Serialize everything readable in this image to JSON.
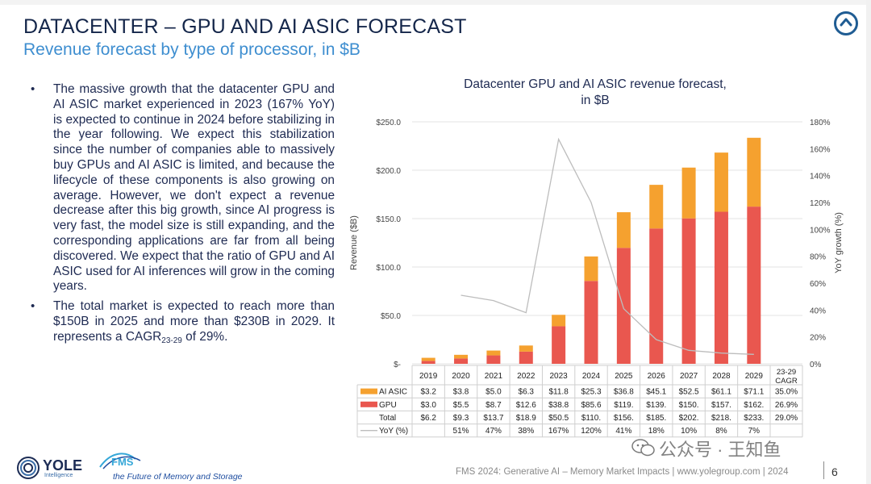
{
  "header": {
    "title": "DATACENTER – GPU AND AI ASIC FORECAST",
    "subtitle": "Revenue forecast by type of processor, in $B",
    "corner_icon": "chevron-up-circle-icon"
  },
  "bullets": [
    {
      "text": "The massive growth that the datacenter GPU and AI ASIC market experienced in 2023 (167% YoY) is expected to continue in 2024 before stabilizing in the year following. We expect this stabilization since the number of companies able to massively buy GPUs and AI ASIC is limited, and because the lifecycle of these components is also growing on average. However, we don't expect a revenue decrease after this big growth, since AI progress is very fast, the model size is still expanding, and the corresponding applications are far from all being discovered. We expect that the ratio of GPU and AI ASIC used for AI inferences will grow in the coming years."
    },
    {
      "text_before": "The total market is expected to reach more than $150B in 2025 and more than $230B in 2029. It represents a CAGR",
      "text_sub": "23-29",
      "text_after": " of 29%."
    }
  ],
  "chart_data": {
    "type": "bar",
    "stacked": true,
    "title": "Datacenter GPU and AI ASIC revenue forecast, in $B",
    "title_lines": [
      "Datacenter GPU and AI ASIC revenue forecast,",
      "in $B"
    ],
    "categories": [
      "2019",
      "2020",
      "2021",
      "2022",
      "2023",
      "2024",
      "2025",
      "2026",
      "2027",
      "2028",
      "2029"
    ],
    "series": [
      {
        "name": "GPU",
        "type": "bar",
        "color": "#e9574f",
        "values": [
          3.0,
          5.5,
          8.7,
          12.6,
          38.8,
          85.6,
          119.8,
          139.8,
          150.2,
          157.1,
          162.4
        ]
      },
      {
        "name": "AI ASIC",
        "type": "bar",
        "color": "#f5a12f",
        "values": [
          3.2,
          3.8,
          5.0,
          6.3,
          11.8,
          25.3,
          36.8,
          45.1,
          52.5,
          61.1,
          71.1
        ]
      },
      {
        "name": "YoY (%)",
        "type": "line",
        "axis": "right",
        "color": "#bdbdbd",
        "values": [
          null,
          51,
          47,
          38,
          167,
          120,
          41,
          18,
          10,
          8,
          7
        ]
      }
    ],
    "ylabel": "Revenue ($B)",
    "y2label": "YoY growth (%)",
    "ylim": [
      0,
      250
    ],
    "y2lim": [
      0,
      180
    ],
    "yticks": [
      "$-",
      "$50.0",
      "$100.0",
      "$150.0",
      "$200.0",
      "$250.0"
    ],
    "y2ticks": [
      "0%",
      "20%",
      "40%",
      "60%",
      "80%",
      "100%",
      "120%",
      "140%",
      "160%",
      "180%"
    ],
    "grid": true,
    "table": {
      "cagr_header": "23-29 CAGR",
      "rows": [
        {
          "label": "AI ASIC",
          "marker": "bar",
          "color": "#f5a12f",
          "cells": [
            "$3.2",
            "$3.8",
            "$5.0",
            "$6.3",
            "$11.8",
            "$25.3",
            "$36.8",
            "$45.1",
            "$52.5",
            "$61.1",
            "$71.1"
          ],
          "cagr": "35.0%"
        },
        {
          "label": "GPU",
          "marker": "bar",
          "color": "#e9574f",
          "cells": [
            "$3.0",
            "$5.5",
            "$8.7",
            "$12.6",
            "$38.8",
            "$85.6",
            "$119.",
            "$139.",
            "$150.",
            "$157.",
            "$162."
          ],
          "cagr": "26.9%"
        },
        {
          "label": "Total",
          "marker": "none",
          "color": "",
          "cells": [
            "$6.2",
            "$9.3",
            "$13.7",
            "$18.9",
            "$50.5",
            "$110.",
            "$156.",
            "$185.",
            "$202.",
            "$218.",
            "$233."
          ],
          "cagr": "29.0%"
        },
        {
          "label": "YoY (%)",
          "marker": "line",
          "color": "#bdbdbd",
          "cells": [
            "",
            "51%",
            "47%",
            "38%",
            "167%",
            "120%",
            "41%",
            "18%",
            "10%",
            "8%",
            "7%"
          ],
          "cagr": ""
        }
      ]
    }
  },
  "footer": {
    "yole_name": "YOLE",
    "yole_sub": "Intelligence",
    "fms_tagline": "the Future of Memory and Storage",
    "note": "FMS 2024: Generative AI – Memory Market Impacts | www.yolegroup.com | 2024",
    "page_number": "6",
    "watermark": "公众号 · 王知鱼"
  }
}
